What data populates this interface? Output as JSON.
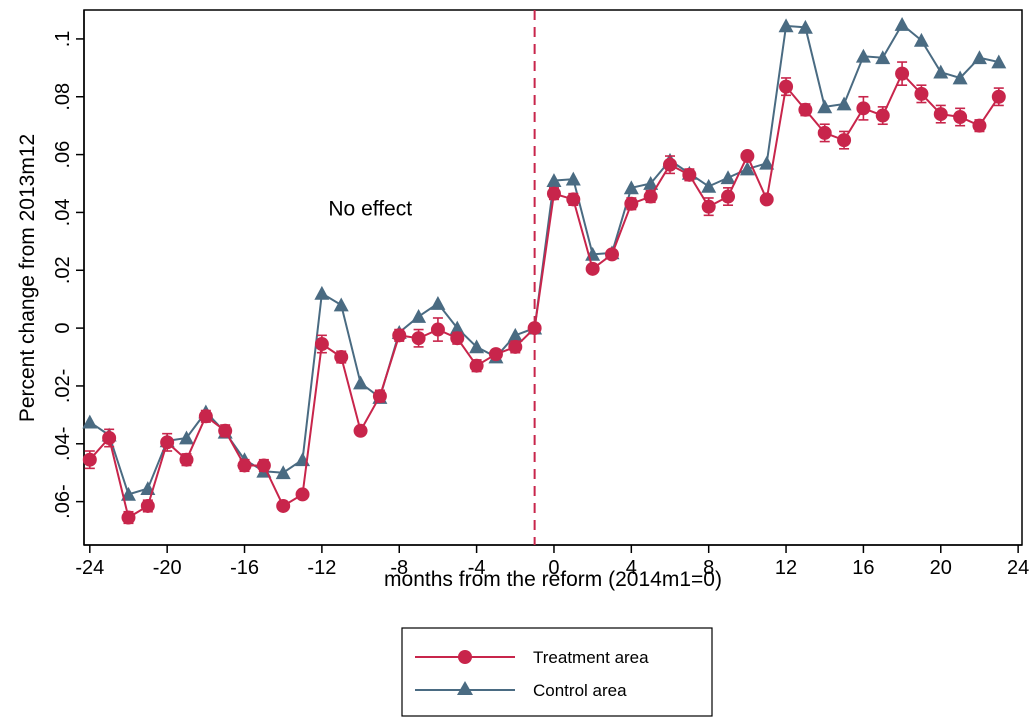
{
  "chart_data": {
    "type": "line",
    "xlabel": "months from the reform (2014m1=0)",
    "ylabel": "Percent change from 2013m12",
    "xlim": [
      -24.3,
      24.2
    ],
    "ylim": [
      -0.075,
      0.11
    ],
    "xticks": [
      -24,
      -20,
      -16,
      -12,
      -8,
      -4,
      0,
      4,
      8,
      12,
      16,
      20,
      24
    ],
    "xtick_labels": [
      "-24",
      "-20",
      "-16",
      "-12",
      "-8",
      "-4",
      "0",
      "4",
      "8",
      "12",
      "16",
      "20",
      "24"
    ],
    "yticks": [
      -0.06,
      -0.04,
      -0.02,
      0,
      0.02,
      0.04,
      0.06,
      0.08,
      0.1
    ],
    "ytick_labels": [
      ".06-",
      ".04-",
      ".02-",
      "0",
      ".02",
      ".04",
      ".06",
      ".08",
      ".1"
    ],
    "reference_line": {
      "x": -1,
      "style": "dashed",
      "color": "#c8254b"
    },
    "annotation": {
      "text": "No effect",
      "x": -9.5,
      "y": 0.039
    },
    "grid": false,
    "legend_position": "bottom-center",
    "x": [
      -24,
      -23,
      -22,
      -21,
      -20,
      -19,
      -18,
      -17,
      -16,
      -15,
      -14,
      -13,
      -12,
      -11,
      -10,
      -9,
      -8,
      -7,
      -6,
      -5,
      -4,
      -3,
      -2,
      -1,
      0,
      1,
      2,
      3,
      4,
      5,
      6,
      7,
      8,
      9,
      10,
      11,
      12,
      13,
      14,
      15,
      16,
      17,
      18,
      19,
      20,
      21,
      22,
      23
    ],
    "series": [
      {
        "name": "Treatment area",
        "color": "#c8254b",
        "marker": "circle",
        "values": [
          -0.0455,
          -0.038,
          -0.0655,
          -0.0615,
          -0.0395,
          -0.0455,
          -0.0305,
          -0.0355,
          -0.0475,
          -0.0475,
          -0.0615,
          -0.0575,
          -0.0055,
          -0.01,
          -0.0355,
          -0.0235,
          -0.0025,
          -0.0035,
          -0.0005,
          -0.0035,
          -0.013,
          -0.009,
          -0.0065,
          0.0,
          0.0465,
          0.0445,
          0.0205,
          0.0255,
          0.043,
          0.0455,
          0.0565,
          0.053,
          0.042,
          0.0455,
          0.0595,
          0.0445,
          0.0835,
          0.0755,
          0.0675,
          0.065,
          0.076,
          0.0735,
          0.088,
          0.081,
          0.074,
          0.073,
          0.07,
          0.08
        ],
        "error_margins": [
          0.003,
          0.003,
          0.002,
          0.002,
          0.003,
          0.002,
          0.002,
          0.002,
          0.002,
          0.002,
          0.001,
          0.001,
          0.003,
          0.002,
          0.001,
          0.002,
          0.002,
          0.003,
          0.004,
          0.002,
          0.002,
          0.001,
          0.002,
          0.001,
          0.002,
          0.002,
          0.001,
          0.001,
          0.002,
          0.002,
          0.003,
          0.002,
          0.003,
          0.003,
          0.001,
          0.001,
          0.003,
          0.002,
          0.003,
          0.003,
          0.004,
          0.003,
          0.004,
          0.003,
          0.003,
          0.003,
          0.002,
          0.003
        ]
      },
      {
        "name": "Control area",
        "color": "#4a6b82",
        "marker": "triangle",
        "values": [
          -0.0325,
          -0.037,
          -0.0575,
          -0.0555,
          -0.039,
          -0.038,
          -0.029,
          -0.036,
          -0.0455,
          -0.0495,
          -0.05,
          -0.0455,
          0.012,
          0.008,
          -0.019,
          -0.024,
          -0.0015,
          0.004,
          0.0085,
          0.0,
          -0.0065,
          -0.01,
          -0.0025,
          0.0,
          0.051,
          0.0515,
          0.0255,
          0.026,
          0.0485,
          0.05,
          0.058,
          0.0535,
          0.049,
          0.052,
          0.055,
          0.057,
          0.1045,
          0.104,
          0.0765,
          0.0775,
          0.094,
          0.0935,
          0.105,
          0.0995,
          0.0885,
          0.0865,
          0.0935,
          0.092
        ]
      }
    ]
  }
}
